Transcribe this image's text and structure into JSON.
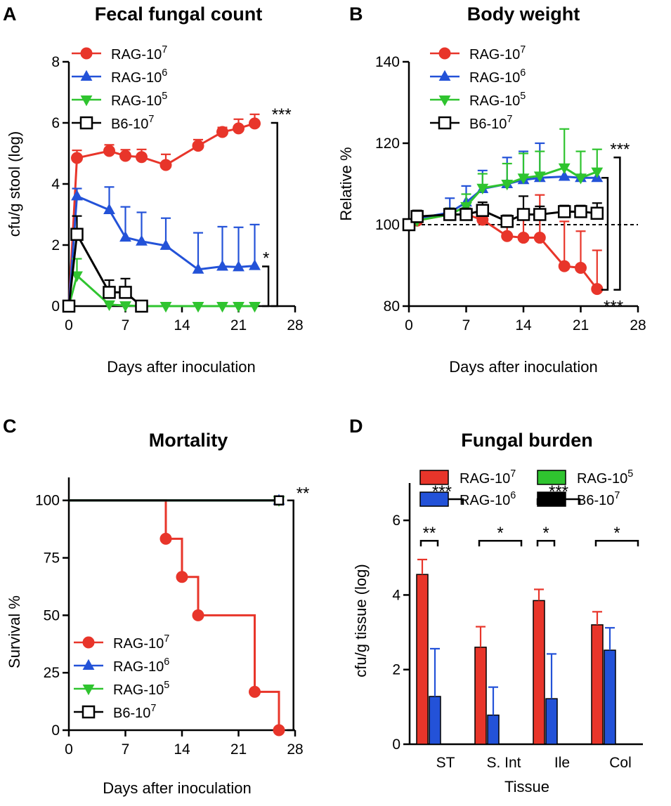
{
  "chart_data": [
    {
      "id": "A",
      "panel_label": "A",
      "type": "line",
      "title": "Fecal fungal count",
      "xlabel": "Days after inoculation",
      "ylabel": "cfu/g stool (log)",
      "xlim": [
        0,
        28
      ],
      "ylim": [
        0,
        8
      ],
      "xticks": [
        0,
        7,
        14,
        21,
        28
      ],
      "yticks": [
        0,
        2,
        4,
        6,
        8
      ],
      "legend_position": "top-left",
      "series": [
        {
          "name": "RAG-10",
          "sup": "7",
          "color": "#e8352a",
          "marker": "circle",
          "x": [
            0,
            1,
            5,
            7,
            9,
            12,
            16,
            19,
            21,
            23
          ],
          "y": [
            0,
            4.85,
            5.08,
            4.92,
            4.88,
            4.62,
            5.25,
            5.7,
            5.82,
            5.98
          ],
          "err": [
            0,
            0.25,
            0.2,
            0.2,
            0.25,
            0.35,
            0.2,
            0.15,
            0.3,
            0.3
          ]
        },
        {
          "name": "RAG-10",
          "sup": "6",
          "color": "#2352d8",
          "marker": "triangle-up",
          "x": [
            0,
            1,
            5,
            7,
            9,
            12,
            16,
            19,
            21,
            23
          ],
          "y": [
            0,
            3.6,
            3.15,
            2.25,
            2.12,
            1.98,
            1.2,
            1.3,
            1.28,
            1.32
          ],
          "err": [
            0,
            0.25,
            0.75,
            1.0,
            0.95,
            0.9,
            1.2,
            1.3,
            1.3,
            1.35
          ]
        },
        {
          "name": "RAG-10",
          "sup": "5",
          "color": "#2fc42f",
          "marker": "triangle-down",
          "x": [
            0,
            1,
            5,
            7,
            9,
            12,
            16,
            19,
            21,
            23
          ],
          "y": [
            0,
            1.0,
            0.05,
            0.02,
            0,
            0,
            0,
            0,
            0,
            0
          ],
          "err": [
            0,
            0.55,
            0,
            0,
            0,
            0,
            0,
            0,
            0,
            0
          ]
        },
        {
          "name": "B6-10",
          "sup": "7",
          "color": "#000000",
          "marker": "square-open",
          "x": [
            0,
            1,
            5,
            7,
            9
          ],
          "y": [
            0,
            2.35,
            0.45,
            0.45,
            0
          ],
          "err": [
            0,
            0.6,
            0.4,
            0.45,
            0
          ]
        }
      ],
      "annotations": [
        {
          "text": "***",
          "type": "bracket-right",
          "y1": 6.0,
          "y2": 0,
          "x": 25.8
        },
        {
          "text": "*",
          "type": "bracket-right",
          "y1": 1.3,
          "y2": 0,
          "x": 24.7
        }
      ]
    },
    {
      "id": "B",
      "panel_label": "B",
      "type": "line",
      "title": "Body weight",
      "xlabel": "Days after inoculation",
      "ylabel": "Relative %",
      "xlim": [
        0,
        28
      ],
      "ylim": [
        80,
        140
      ],
      "xticks": [
        0,
        7,
        14,
        21,
        28
      ],
      "yticks": [
        80,
        100,
        120,
        140
      ],
      "reference_line": 100,
      "legend_position": "top-left",
      "series": [
        {
          "name": "RAG-10",
          "sup": "7",
          "color": "#e8352a",
          "marker": "circle",
          "x": [
            0,
            1,
            5,
            7,
            9,
            12,
            14,
            16,
            19,
            21,
            23
          ],
          "y": [
            100,
            101,
            102.5,
            102.5,
            101.2,
            97.2,
            96.8,
            96.8,
            89.8,
            89.4,
            84.2
          ],
          "err": [
            0,
            0.8,
            1.2,
            1.5,
            2,
            3.5,
            7,
            10.5,
            11,
            9,
            9.5
          ]
        },
        {
          "name": "RAG-10",
          "sup": "6",
          "color": "#2352d8",
          "marker": "triangle-up",
          "x": [
            0,
            1,
            5,
            7,
            9,
            12,
            14,
            16,
            19,
            21,
            23
          ],
          "y": [
            100,
            101.5,
            103,
            105.5,
            108.8,
            110,
            111,
            111.5,
            111.8,
            111.5,
            111.5
          ],
          "err": [
            0,
            0.5,
            3.5,
            4,
            4.5,
            6.5,
            7,
            8.5,
            0,
            0,
            0
          ]
        },
        {
          "name": "RAG-10",
          "sup": "5",
          "color": "#2fc42f",
          "marker": "triangle-down",
          "x": [
            0,
            1,
            5,
            7,
            9,
            12,
            14,
            16,
            19,
            21,
            23
          ],
          "y": [
            100,
            101,
            102.5,
            104.5,
            109,
            110,
            111.5,
            112,
            114,
            111.5,
            113
          ],
          "err": [
            0,
            0.5,
            1.5,
            3,
            3.5,
            5,
            6,
            6,
            9.5,
            6.5,
            5.5
          ]
        },
        {
          "name": "B6-10",
          "sup": "7",
          "color": "#000000",
          "marker": "square-open",
          "x": [
            0,
            1,
            5,
            7,
            9,
            12,
            14,
            16,
            19,
            21,
            23
          ],
          "y": [
            100,
            102,
            102.5,
            102.5,
            103.5,
            100.8,
            102.5,
            102.5,
            103.2,
            103.2,
            102.8
          ],
          "err": [
            0,
            1.5,
            1.5,
            1.5,
            2,
            1.5,
            4.5,
            2,
            1.5,
            1.5,
            2.5
          ]
        }
      ],
      "annotations": [
        {
          "text": "***",
          "type": "bracket-right",
          "y1": 116.5,
          "y2": 84,
          "x": 25.8
        },
        {
          "text": "***",
          "type": "bracket-right",
          "y1": 111.5,
          "y2": 84,
          "x": 24.3
        },
        {
          "text": "***",
          "type": "label-below",
          "x": 25,
          "y": 78.5
        }
      ]
    },
    {
      "id": "C",
      "panel_label": "C",
      "type": "line",
      "subtype": "survival-step",
      "title": "Mortality",
      "xlabel": "Days after inoculation",
      "ylabel": "Survival %",
      "xlim": [
        0,
        28
      ],
      "ylim": [
        0,
        110
      ],
      "xticks": [
        0,
        7,
        14,
        21,
        28
      ],
      "yticks": [
        0,
        25,
        50,
        75,
        100
      ],
      "legend_position": "bottom-left",
      "series": [
        {
          "name": "RAG-10",
          "sup": "7",
          "color": "#e8352a",
          "marker": "circle",
          "step_x": [
            0,
            12,
            12,
            14,
            14,
            16,
            16,
            23,
            23,
            26,
            26
          ],
          "step_y": [
            100,
            100,
            83.3,
            83.3,
            66.7,
            66.7,
            50,
            50,
            16.7,
            16.7,
            0
          ],
          "marker_x": [
            12,
            14,
            16,
            23,
            26
          ],
          "marker_y": [
            83.3,
            66.7,
            50,
            16.7,
            0
          ]
        },
        {
          "name": "RAG-10",
          "sup": "6",
          "color": "#2352d8",
          "marker": "triangle-up",
          "step_x": [
            0,
            26
          ],
          "step_y": [
            100,
            100
          ],
          "marker_x": [
            26
          ],
          "marker_y": [
            100
          ]
        },
        {
          "name": "RAG-10",
          "sup": "5",
          "color": "#2fc42f",
          "marker": "triangle-down",
          "step_x": [
            0,
            26
          ],
          "step_y": [
            100,
            100
          ],
          "marker_x": [
            26
          ],
          "marker_y": [
            100
          ]
        },
        {
          "name": "B6-10",
          "sup": "7",
          "color": "#000000",
          "marker": "square-open",
          "step_x": [
            0,
            26
          ],
          "step_y": [
            100,
            100
          ],
          "marker_x": [
            26
          ],
          "marker_y": [
            100
          ]
        }
      ],
      "annotations": [
        {
          "text": "**",
          "type": "bracket-right",
          "y1": 100,
          "y2": 0,
          "x": 27.8
        }
      ]
    },
    {
      "id": "D",
      "panel_label": "D",
      "type": "bar",
      "title": "Fungal burden",
      "xlabel": "Tissue",
      "ylabel": "cfu/g tissue (log)",
      "ylim": [
        0,
        7
      ],
      "yticks": [
        0,
        2,
        4,
        6
      ],
      "categories": [
        "ST",
        "S. Int",
        "Ile",
        "Col"
      ],
      "legend_position": "top",
      "series": [
        {
          "name": "RAG-10",
          "sup": "7",
          "color": "#e8352a",
          "values": [
            4.55,
            2.6,
            3.85,
            3.2
          ],
          "err": [
            0.4,
            0.55,
            0.3,
            0.35
          ]
        },
        {
          "name": "RAG-10",
          "sup": "6",
          "color": "#2352d8",
          "values": [
            1.28,
            0.78,
            1.22,
            2.52
          ],
          "err": [
            1.28,
            0.75,
            1.2,
            0.6
          ]
        },
        {
          "name": "RAG-10",
          "sup": "5",
          "color": "#2fc42f",
          "values": [
            0,
            0,
            0,
            0
          ],
          "err": [
            0,
            0,
            0,
            0
          ]
        },
        {
          "name": "B6-10",
          "sup": "7",
          "color": "#000000",
          "values": [
            0,
            0,
            0,
            0
          ],
          "err": [
            0,
            0,
            0,
            0
          ]
        }
      ],
      "annotations": [
        {
          "category": 0,
          "from_series": 0,
          "to_series": 1,
          "level": 6.3,
          "text": "**"
        },
        {
          "category": 0,
          "from_series": 0,
          "to_series": 3,
          "level": 7.0,
          "text": "***"
        },
        {
          "category": 1,
          "from_series": 0,
          "to_series": 3,
          "level": 6.3,
          "text": "*"
        },
        {
          "category": 2,
          "from_series": 0,
          "to_series": 1,
          "level": 6.3,
          "text": "*"
        },
        {
          "category": 2,
          "from_series": 0,
          "to_series": 3,
          "level": 7.0,
          "text": "***"
        },
        {
          "category": 3,
          "from_series": 0,
          "to_series": 3,
          "level": 6.3,
          "text": "*"
        }
      ]
    }
  ]
}
